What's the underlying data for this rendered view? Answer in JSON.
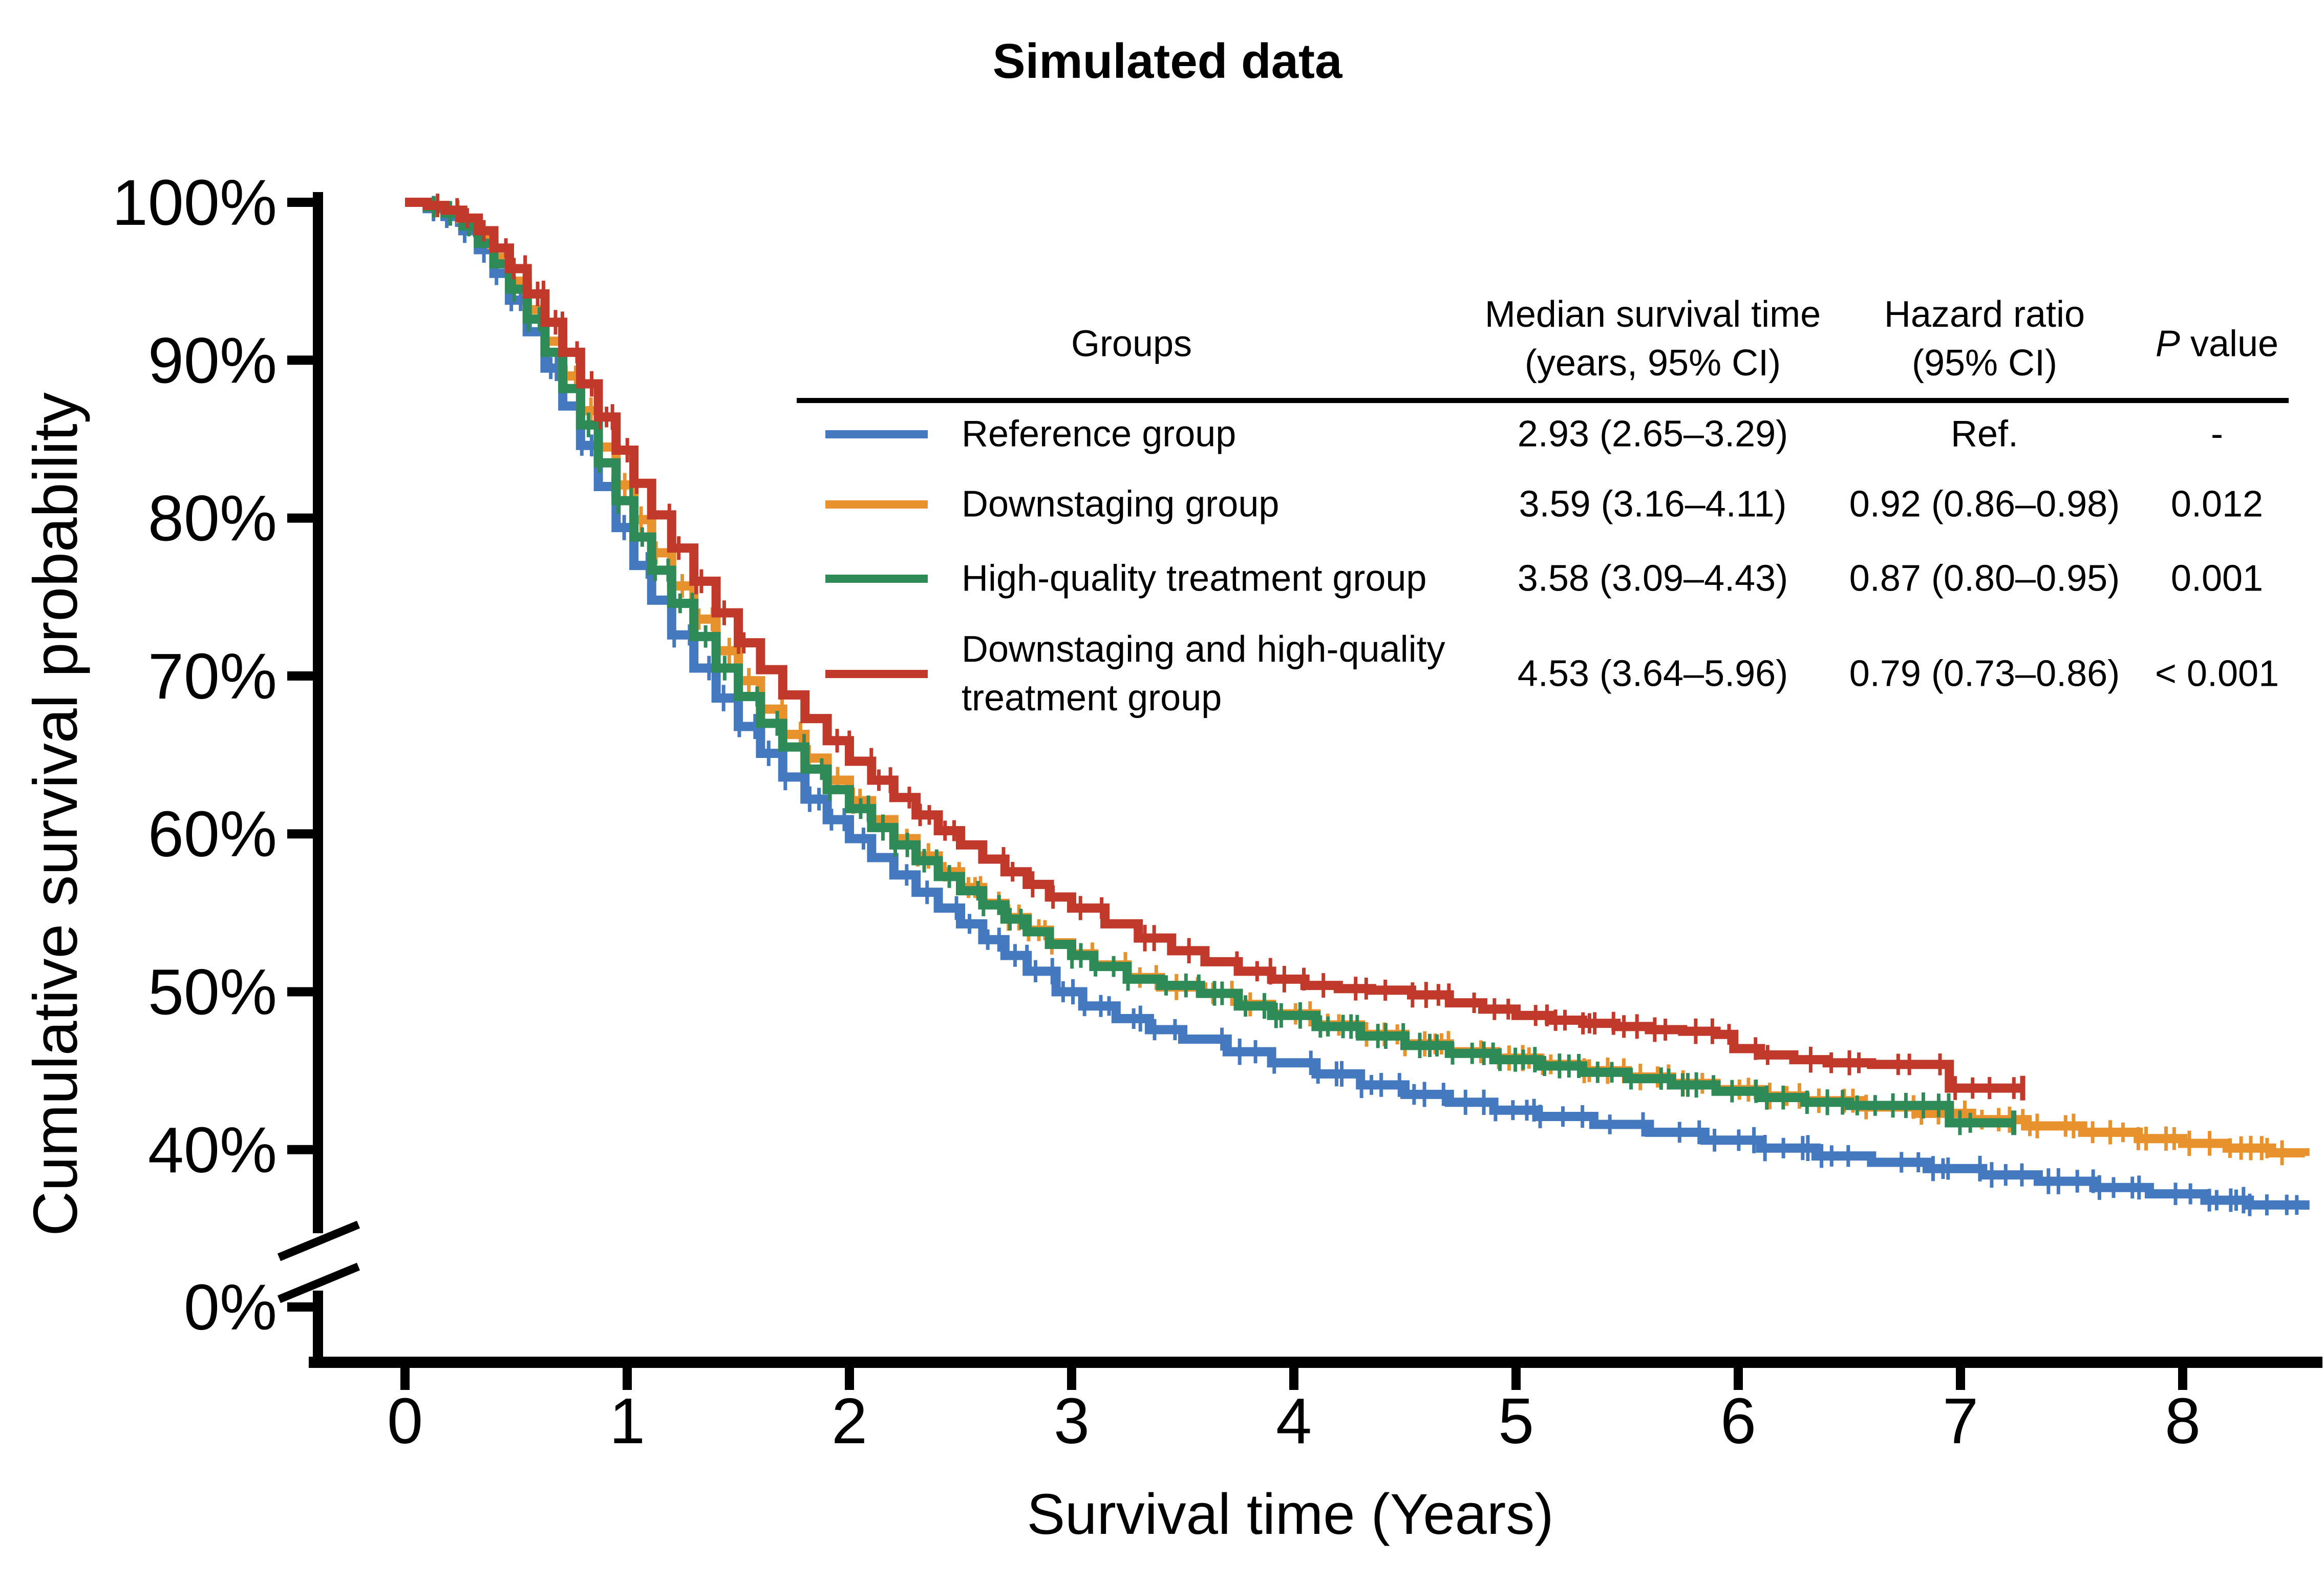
{
  "title": "Simulated data",
  "axes": {
    "x": {
      "label": "Survival time (Years)",
      "ticks": [
        {
          "label": "0",
          "value": 0
        },
        {
          "label": "1",
          "value": 1
        },
        {
          "label": "2",
          "value": 2
        },
        {
          "label": "3",
          "value": 3
        },
        {
          "label": "4",
          "value": 4
        },
        {
          "label": "5",
          "value": 5
        },
        {
          "label": "6",
          "value": 6
        },
        {
          "label": "7",
          "value": 7
        },
        {
          "label": "8",
          "value": 8
        }
      ]
    },
    "y": {
      "label": "Cumulative survival probability",
      "broken_axis": true,
      "ticks": [
        {
          "label": "100%",
          "value": 100
        },
        {
          "label": "90%",
          "value": 90
        },
        {
          "label": "80%",
          "value": 80
        },
        {
          "label": "70%",
          "value": 70
        },
        {
          "label": "60%",
          "value": 60
        },
        {
          "label": "50%",
          "value": 50
        },
        {
          "label": "40%",
          "value": 40
        },
        {
          "label": "0%",
          "value": 0
        }
      ]
    }
  },
  "table": {
    "headers": {
      "groups": "Groups",
      "median_l1": "Median survival time",
      "median_l2": "(years, 95% CI)",
      "hazard_l1": "Hazard ratio",
      "hazard_l2": "(95% CI)",
      "p_italic": "P",
      "p_rest": " value"
    },
    "rows": [
      {
        "group_l1": "Reference group",
        "group_l2": "",
        "median": "2.93 (2.65–3.29)",
        "hazard": "Ref.",
        "p": "-",
        "color": "#4478bf"
      },
      {
        "group_l1": "Downstaging group",
        "group_l2": "",
        "median": "3.59 (3.16–4.11)",
        "hazard": "0.92 (0.86–0.98)",
        "p": "0.012",
        "color": "#e8922e"
      },
      {
        "group_l1": "High-quality treatment group",
        "group_l2": "",
        "median": "3.58 (3.09–4.43)",
        "hazard": "0.87 (0.80–0.95)",
        "p": "0.001",
        "color": "#2e8b57"
      },
      {
        "group_l1": "Downstaging and high-quality",
        "group_l2": "treatment group",
        "median": "4.53 (3.64–5.96)",
        "hazard": "0.79 (0.73–0.86)",
        "p": "< 0.001",
        "color": "#c0392b"
      }
    ]
  },
  "chart_data": {
    "type": "line",
    "subtype": "kaplan-meier-step",
    "title": "Simulated data",
    "xlabel": "Survival time (Years)",
    "ylabel": "Cumulative survival probability",
    "xlim": [
      0,
      8.6
    ],
    "ylim_upper_segment": [
      40,
      100
    ],
    "ylim_note": "y-axis broken between 0% and 40%",
    "grid": false,
    "legend_position": "table overlay, upper right",
    "series": [
      {
        "name": "Reference group",
        "color": "#4478bf",
        "median_years": 2.93,
        "end_tick": false,
        "points": [
          [
            0,
            100
          ],
          [
            0.1,
            99.6
          ],
          [
            0.18,
            99.1
          ],
          [
            0.26,
            98.2
          ],
          [
            0.33,
            97.0
          ],
          [
            0.4,
            95.5
          ],
          [
            0.47,
            93.8
          ],
          [
            0.55,
            91.8
          ],
          [
            0.63,
            89.5
          ],
          [
            0.71,
            87.1
          ],
          [
            0.79,
            84.6
          ],
          [
            0.87,
            82.0
          ],
          [
            0.95,
            79.4
          ],
          [
            1.03,
            77.0
          ],
          [
            1.11,
            74.8
          ],
          [
            1.2,
            72.6
          ],
          [
            1.3,
            70.5
          ],
          [
            1.4,
            68.6
          ],
          [
            1.5,
            66.8
          ],
          [
            1.6,
            65.1
          ],
          [
            1.7,
            63.6
          ],
          [
            1.8,
            62.2
          ],
          [
            1.9,
            60.9
          ],
          [
            2.0,
            59.7
          ],
          [
            2.1,
            58.5
          ],
          [
            2.2,
            57.4
          ],
          [
            2.3,
            56.3
          ],
          [
            2.4,
            55.3
          ],
          [
            2.5,
            54.3
          ],
          [
            2.6,
            53.3
          ],
          [
            2.7,
            52.3
          ],
          [
            2.8,
            51.3
          ],
          [
            2.93,
            50.0
          ],
          [
            3.05,
            49.1
          ],
          [
            3.2,
            48.3
          ],
          [
            3.35,
            47.6
          ],
          [
            3.5,
            47.0
          ],
          [
            3.7,
            46.2
          ],
          [
            3.9,
            45.5
          ],
          [
            4.1,
            44.8
          ],
          [
            4.3,
            44.1
          ],
          [
            4.5,
            43.5
          ],
          [
            4.7,
            43.0
          ],
          [
            4.9,
            42.5
          ],
          [
            5.1,
            42.1
          ],
          [
            5.35,
            41.6
          ],
          [
            5.6,
            41.1
          ],
          [
            5.85,
            40.6
          ],
          [
            6.1,
            40.1
          ],
          [
            6.35,
            39.6
          ],
          [
            6.6,
            39.2
          ],
          [
            6.85,
            38.8
          ],
          [
            7.1,
            38.4
          ],
          [
            7.35,
            38.0
          ],
          [
            7.6,
            37.6
          ],
          [
            7.85,
            37.2
          ],
          [
            8.1,
            36.8
          ],
          [
            8.3,
            36.5
          ],
          [
            8.55,
            36.2
          ]
        ]
      },
      {
        "name": "Downstaging group",
        "color": "#e8922e",
        "median_years": 3.59,
        "end_tick": false,
        "points": [
          [
            0,
            100
          ],
          [
            0.1,
            99.7
          ],
          [
            0.18,
            99.4
          ],
          [
            0.26,
            98.7
          ],
          [
            0.33,
            97.7
          ],
          [
            0.4,
            96.5
          ],
          [
            0.47,
            95.0
          ],
          [
            0.55,
            93.2
          ],
          [
            0.63,
            91.2
          ],
          [
            0.71,
            89.0
          ],
          [
            0.79,
            86.8
          ],
          [
            0.87,
            84.5
          ],
          [
            0.95,
            82.1
          ],
          [
            1.03,
            79.9
          ],
          [
            1.11,
            77.8
          ],
          [
            1.2,
            75.7
          ],
          [
            1.3,
            73.6
          ],
          [
            1.4,
            71.6
          ],
          [
            1.5,
            69.7
          ],
          [
            1.6,
            67.9
          ],
          [
            1.7,
            66.3
          ],
          [
            1.8,
            64.8
          ],
          [
            1.9,
            63.4
          ],
          [
            2.0,
            62.1
          ],
          [
            2.1,
            60.9
          ],
          [
            2.2,
            59.7
          ],
          [
            2.3,
            58.6
          ],
          [
            2.4,
            57.6
          ],
          [
            2.5,
            56.6
          ],
          [
            2.6,
            55.6
          ],
          [
            2.7,
            54.7
          ],
          [
            2.8,
            53.9
          ],
          [
            2.9,
            53.1
          ],
          [
            3.0,
            52.4
          ],
          [
            3.1,
            51.7
          ],
          [
            3.25,
            50.9
          ],
          [
            3.4,
            50.3
          ],
          [
            3.59,
            49.9
          ],
          [
            3.75,
            49.2
          ],
          [
            3.9,
            48.6
          ],
          [
            4.1,
            47.9
          ],
          [
            4.3,
            47.3
          ],
          [
            4.5,
            46.7
          ],
          [
            4.7,
            46.2
          ],
          [
            4.9,
            45.8
          ],
          [
            5.1,
            45.4
          ],
          [
            5.3,
            45.0
          ],
          [
            5.5,
            44.6
          ],
          [
            5.7,
            44.2
          ],
          [
            5.9,
            43.8
          ],
          [
            6.1,
            43.4
          ],
          [
            6.3,
            43.1
          ],
          [
            6.55,
            42.7
          ],
          [
            6.8,
            42.3
          ],
          [
            7.05,
            41.9
          ],
          [
            7.3,
            41.5
          ],
          [
            7.55,
            41.1
          ],
          [
            7.8,
            40.7
          ],
          [
            8.0,
            40.4
          ],
          [
            8.2,
            40.1
          ],
          [
            8.4,
            39.8
          ],
          [
            8.55,
            39.6
          ]
        ]
      },
      {
        "name": "High-quality treatment group",
        "color": "#2e8b57",
        "median_years": 3.58,
        "end_tick": true,
        "points": [
          [
            0,
            100
          ],
          [
            0.1,
            99.7
          ],
          [
            0.18,
            99.3
          ],
          [
            0.26,
            98.5
          ],
          [
            0.33,
            97.4
          ],
          [
            0.4,
            96.1
          ],
          [
            0.47,
            94.5
          ],
          [
            0.55,
            92.6
          ],
          [
            0.63,
            90.5
          ],
          [
            0.71,
            88.2
          ],
          [
            0.79,
            85.9
          ],
          [
            0.87,
            83.5
          ],
          [
            0.95,
            81.1
          ],
          [
            1.03,
            78.8
          ],
          [
            1.11,
            76.7
          ],
          [
            1.2,
            74.6
          ],
          [
            1.3,
            72.5
          ],
          [
            1.4,
            70.5
          ],
          [
            1.5,
            68.7
          ],
          [
            1.6,
            67.0
          ],
          [
            1.7,
            65.5
          ],
          [
            1.8,
            64.1
          ],
          [
            1.9,
            62.8
          ],
          [
            2.0,
            61.6
          ],
          [
            2.1,
            60.4
          ],
          [
            2.2,
            59.3
          ],
          [
            2.3,
            58.3
          ],
          [
            2.4,
            57.3
          ],
          [
            2.5,
            56.4
          ],
          [
            2.6,
            55.5
          ],
          [
            2.7,
            54.6
          ],
          [
            2.8,
            53.8
          ],
          [
            2.9,
            53.0
          ],
          [
            3.0,
            52.3
          ],
          [
            3.1,
            51.6
          ],
          [
            3.25,
            50.8
          ],
          [
            3.4,
            50.4
          ],
          [
            3.58,
            49.9
          ],
          [
            3.75,
            49.1
          ],
          [
            3.9,
            48.5
          ],
          [
            4.1,
            47.8
          ],
          [
            4.3,
            47.2
          ],
          [
            4.5,
            46.6
          ],
          [
            4.7,
            46.1
          ],
          [
            4.9,
            45.7
          ],
          [
            5.1,
            45.3
          ],
          [
            5.3,
            44.9
          ],
          [
            5.5,
            44.5
          ],
          [
            5.7,
            44.1
          ],
          [
            5.9,
            43.7
          ],
          [
            6.1,
            43.3
          ],
          [
            6.3,
            43.0
          ],
          [
            6.5,
            42.8
          ],
          [
            6.95,
            41.7
          ],
          [
            7.24,
            41.7
          ]
        ]
      },
      {
        "name": "Downstaging and high-quality treatment group",
        "color": "#c0392b",
        "median_years": 4.53,
        "end_tick": true,
        "points": [
          [
            0,
            100
          ],
          [
            0.1,
            99.8
          ],
          [
            0.18,
            99.5
          ],
          [
            0.26,
            99.0
          ],
          [
            0.33,
            98.2
          ],
          [
            0.4,
            97.1
          ],
          [
            0.47,
            95.8
          ],
          [
            0.55,
            94.2
          ],
          [
            0.63,
            92.4
          ],
          [
            0.71,
            90.5
          ],
          [
            0.79,
            88.5
          ],
          [
            0.87,
            86.4
          ],
          [
            0.95,
            84.3
          ],
          [
            1.03,
            82.2
          ],
          [
            1.11,
            80.2
          ],
          [
            1.2,
            78.1
          ],
          [
            1.3,
            76.0
          ],
          [
            1.4,
            74.0
          ],
          [
            1.5,
            72.1
          ],
          [
            1.6,
            70.4
          ],
          [
            1.7,
            68.8
          ],
          [
            1.8,
            67.3
          ],
          [
            1.9,
            65.9
          ],
          [
            2.0,
            64.6
          ],
          [
            2.1,
            63.4
          ],
          [
            2.2,
            62.3
          ],
          [
            2.3,
            61.2
          ],
          [
            2.4,
            60.2
          ],
          [
            2.5,
            59.3
          ],
          [
            2.6,
            58.4
          ],
          [
            2.7,
            57.6
          ],
          [
            2.8,
            56.8
          ],
          [
            2.9,
            56.0
          ],
          [
            3.0,
            55.3
          ],
          [
            3.15,
            54.3
          ],
          [
            3.3,
            53.4
          ],
          [
            3.45,
            52.6
          ],
          [
            3.6,
            51.9
          ],
          [
            3.75,
            51.3
          ],
          [
            3.9,
            50.8
          ],
          [
            4.05,
            50.4
          ],
          [
            4.2,
            50.2
          ],
          [
            4.35,
            50.1
          ],
          [
            4.53,
            49.8
          ],
          [
            4.7,
            49.3
          ],
          [
            4.85,
            48.9
          ],
          [
            5.0,
            48.5
          ],
          [
            5.15,
            48.2
          ],
          [
            5.3,
            48.0
          ],
          [
            5.45,
            47.8
          ],
          [
            5.6,
            47.6
          ],
          [
            5.75,
            47.5
          ],
          [
            5.9,
            47.3
          ],
          [
            5.98,
            46.4
          ],
          [
            6.1,
            46.0
          ],
          [
            6.25,
            45.7
          ],
          [
            6.4,
            45.5
          ],
          [
            6.6,
            45.4
          ],
          [
            6.95,
            43.9
          ],
          [
            7.28,
            43.9
          ]
        ]
      }
    ]
  },
  "colors": {
    "axis": "#000000",
    "background": "#ffffff"
  }
}
